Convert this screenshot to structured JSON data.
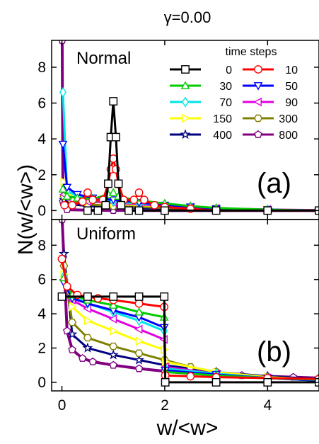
{
  "figure": {
    "title": "γ=0.00",
    "xlabel": "w/<w>",
    "ylabel": "N(w/<w>)",
    "legend_title": "time steps",
    "legend_placement": "top-right of panel (a)"
  },
  "series_style": [
    {
      "name": "0",
      "color": "#000000",
      "marker": "square"
    },
    {
      "name": "10",
      "color": "#ff0000",
      "marker": "circle"
    },
    {
      "name": "30",
      "color": "#00cc00",
      "marker": "triangle-up"
    },
    {
      "name": "50",
      "color": "#0000ff",
      "marker": "triangle-down"
    },
    {
      "name": "70",
      "color": "#00e5e5",
      "marker": "diamond"
    },
    {
      "name": "90",
      "color": "#e000e0",
      "marker": "triangle-left"
    },
    {
      "name": "150",
      "color": "#ffff00",
      "marker": "triangle-right"
    },
    {
      "name": "300",
      "color": "#808000",
      "marker": "hexagon"
    },
    {
      "name": "400",
      "color": "#000080",
      "marker": "star"
    },
    {
      "name": "800",
      "color": "#800080",
      "marker": "pentagon"
    }
  ],
  "chart_data": [
    {
      "type": "line",
      "panel_label": "(a)",
      "panel_name": "Normal",
      "xlim": [
        -0.2,
        5.0
      ],
      "ylim": [
        -0.5,
        9.5
      ],
      "xticks": [
        0,
        2,
        4
      ],
      "yticks": [
        0,
        2,
        4,
        6,
        8
      ],
      "grid": false,
      "series": [
        {
          "name": "0",
          "points": [
            [
              0.5,
              0
            ],
            [
              0.7,
              0
            ],
            [
              0.85,
              0.3
            ],
            [
              0.9,
              1.5
            ],
            [
              0.95,
              4.1
            ],
            [
              1.0,
              6.1
            ],
            [
              1.05,
              4.1
            ],
            [
              1.1,
              1.5
            ],
            [
              1.15,
              0.3
            ],
            [
              1.3,
              0
            ],
            [
              1.5,
              0
            ],
            [
              2.0,
              0
            ],
            [
              3.0,
              0
            ],
            [
              4.0,
              0
            ],
            [
              5.0,
              0
            ]
          ]
        },
        {
          "name": "10",
          "points": [
            [
              0.05,
              0.3
            ],
            [
              0.2,
              0.3
            ],
            [
              0.4,
              0.5
            ],
            [
              0.5,
              1.0
            ],
            [
              0.6,
              0.6
            ],
            [
              0.8,
              0.6
            ],
            [
              0.9,
              1.5
            ],
            [
              0.95,
              2.3
            ],
            [
              1.0,
              2.9
            ],
            [
              1.05,
              2.3
            ],
            [
              1.1,
              1.5
            ],
            [
              1.2,
              0.6
            ],
            [
              1.4,
              0.6
            ],
            [
              1.5,
              1.0
            ],
            [
              1.6,
              0.6
            ],
            [
              1.8,
              0.3
            ],
            [
              2.0,
              0.2
            ],
            [
              2.5,
              0.1
            ],
            [
              3.0,
              0
            ],
            [
              4.0,
              0
            ],
            [
              5.0,
              0
            ]
          ]
        },
        {
          "name": "30",
          "points": [
            [
              0.02,
              1.2
            ],
            [
              0.1,
              0.8
            ],
            [
              0.3,
              0.7
            ],
            [
              0.6,
              0.65
            ],
            [
              0.9,
              0.9
            ],
            [
              1.0,
              1.0
            ],
            [
              1.1,
              0.8
            ],
            [
              1.4,
              0.6
            ],
            [
              2.0,
              0.4
            ],
            [
              2.5,
              0.25
            ],
            [
              3.0,
              0.15
            ],
            [
              4.0,
              0.05
            ],
            [
              5.0,
              0
            ]
          ]
        },
        {
          "name": "50",
          "points": [
            [
              0.02,
              3.7
            ],
            [
              0.1,
              1.3
            ],
            [
              0.3,
              0.9
            ],
            [
              0.6,
              0.7
            ],
            [
              1.0,
              0.6
            ],
            [
              1.5,
              0.45
            ],
            [
              2.0,
              0.3
            ],
            [
              2.5,
              0.2
            ],
            [
              3.0,
              0.1
            ],
            [
              4.0,
              0.05
            ],
            [
              5.0,
              0
            ]
          ]
        },
        {
          "name": "70",
          "points": [
            [
              0.02,
              6.6
            ],
            [
              0.1,
              1.1
            ],
            [
              0.3,
              0.8
            ],
            [
              0.6,
              0.65
            ],
            [
              1.0,
              0.5
            ],
            [
              1.5,
              0.4
            ],
            [
              2.0,
              0.3
            ],
            [
              2.5,
              0.2
            ],
            [
              3.0,
              0.1
            ],
            [
              4.0,
              0.05
            ],
            [
              5.0,
              0
            ]
          ]
        },
        {
          "name": "90",
          "points": [
            [
              0.04,
              0.9
            ],
            [
              0.2,
              0.6
            ],
            [
              0.5,
              0.5
            ],
            [
              1.0,
              0.45
            ],
            [
              1.5,
              0.35
            ],
            [
              2.0,
              0.25
            ],
            [
              2.5,
              0.18
            ],
            [
              3.0,
              0.12
            ],
            [
              4.0,
              0.06
            ],
            [
              5.0,
              0.02
            ]
          ]
        },
        {
          "name": "150",
          "points": [
            [
              0.04,
              1.6
            ],
            [
              0.2,
              0.7
            ],
            [
              0.5,
              0.5
            ],
            [
              1.0,
              0.4
            ],
            [
              1.5,
              0.3
            ],
            [
              2.0,
              0.25
            ],
            [
              3.0,
              0.12
            ],
            [
              4.0,
              0.05
            ],
            [
              5.0,
              0.02
            ]
          ]
        },
        {
          "name": "300",
          "points": [
            [
              0.04,
              0.8
            ],
            [
              0.2,
              0.5
            ],
            [
              0.5,
              0.35
            ],
            [
              1.0,
              0.25
            ],
            [
              1.5,
              0.2
            ],
            [
              2.0,
              0.15
            ],
            [
              3.0,
              0.08
            ],
            [
              4.0,
              0.04
            ],
            [
              5.0,
              0.02
            ]
          ]
        },
        {
          "name": "400",
          "points": [
            [
              0.04,
              0.6
            ],
            [
              0.2,
              0.35
            ],
            [
              0.5,
              0.25
            ],
            [
              1.0,
              0.2
            ],
            [
              1.5,
              0.15
            ],
            [
              2.0,
              0.12
            ],
            [
              3.0,
              0.06
            ],
            [
              4.0,
              0.03
            ],
            [
              5.0,
              0.01
            ]
          ]
        },
        {
          "name": "800",
          "points": [
            [
              0.005,
              9.5
            ],
            [
              0.02,
              0.5
            ],
            [
              0.1,
              0.05
            ],
            [
              0.5,
              0.02
            ],
            [
              1.0,
              0.01
            ],
            [
              2.0,
              0
            ],
            [
              3.0,
              0
            ],
            [
              4.0,
              0
            ],
            [
              5.0,
              0
            ]
          ]
        }
      ]
    },
    {
      "type": "line",
      "panel_label": "(b)",
      "panel_name": "Uniform",
      "xlim": [
        -0.2,
        5.0
      ],
      "ylim": [
        -0.5,
        9.5
      ],
      "xticks": [
        0,
        2,
        4
      ],
      "yticks": [
        0,
        2,
        4,
        6,
        8
      ],
      "grid": false,
      "series": [
        {
          "name": "0",
          "points": [
            [
              0.0,
              5.0
            ],
            [
              0.5,
              5.0
            ],
            [
              1.0,
              5.0
            ],
            [
              1.5,
              5.0
            ],
            [
              1.99,
              5.0
            ],
            [
              2.01,
              0
            ],
            [
              3.0,
              0
            ],
            [
              4.0,
              0
            ],
            [
              5.0,
              0
            ]
          ]
        },
        {
          "name": "10",
          "points": [
            [
              0.0,
              7.2
            ],
            [
              0.1,
              5.6
            ],
            [
              0.3,
              5.1
            ],
            [
              0.7,
              4.9
            ],
            [
              1.0,
              4.8
            ],
            [
              1.5,
              4.6
            ],
            [
              1.99,
              4.4
            ],
            [
              2.01,
              0.4
            ],
            [
              2.5,
              0.35
            ],
            [
              3.0,
              0.3
            ],
            [
              4.0,
              0.25
            ],
            [
              5.0,
              0.2
            ]
          ]
        },
        {
          "name": "30",
          "points": [
            [
              0.04,
              6.1
            ],
            [
              0.2,
              5.1
            ],
            [
              0.5,
              4.8
            ],
            [
              1.0,
              4.5
            ],
            [
              1.5,
              4.1
            ],
            [
              1.99,
              3.8
            ],
            [
              2.01,
              0.6
            ],
            [
              3.0,
              0.4
            ],
            [
              4.0,
              0.25
            ],
            [
              5.0,
              0.15
            ]
          ]
        },
        {
          "name": "50",
          "points": [
            [
              0.04,
              5.8
            ],
            [
              0.2,
              4.9
            ],
            [
              0.5,
              4.6
            ],
            [
              1.0,
              4.2
            ],
            [
              1.5,
              3.8
            ],
            [
              1.99,
              3.2
            ],
            [
              2.01,
              0.7
            ],
            [
              3.0,
              0.45
            ],
            [
              4.0,
              0.25
            ],
            [
              5.0,
              0.1
            ]
          ]
        },
        {
          "name": "70",
          "points": [
            [
              0.04,
              6.2
            ],
            [
              0.2,
              5.0
            ],
            [
              0.5,
              4.6
            ],
            [
              1.0,
              4.1
            ],
            [
              1.5,
              3.6
            ],
            [
              1.99,
              3.0
            ],
            [
              2.01,
              0.8
            ],
            [
              3.0,
              0.5
            ],
            [
              4.0,
              0.25
            ],
            [
              5.0,
              0.1
            ]
          ]
        },
        {
          "name": "90",
          "points": [
            [
              0.04,
              6.0
            ],
            [
              0.2,
              4.8
            ],
            [
              0.5,
              4.3
            ],
            [
              1.0,
              3.7
            ],
            [
              1.5,
              3.1
            ],
            [
              1.99,
              2.5
            ],
            [
              2.01,
              0.9
            ],
            [
              3.0,
              0.5
            ],
            [
              4.0,
              0.25
            ],
            [
              5.0,
              0.1
            ]
          ]
        },
        {
          "name": "150",
          "points": [
            [
              0.04,
              6.3
            ],
            [
              0.2,
              4.4
            ],
            [
              0.5,
              3.6
            ],
            [
              1.0,
              3.0
            ],
            [
              1.5,
              2.4
            ],
            [
              1.99,
              1.9
            ],
            [
              2.01,
              1.2
            ],
            [
              3.0,
              0.6
            ],
            [
              4.0,
              0.3
            ],
            [
              5.0,
              0.15
            ]
          ]
        },
        {
          "name": "300",
          "points": [
            [
              0.04,
              6.8
            ],
            [
              0.2,
              3.5
            ],
            [
              0.5,
              2.6
            ],
            [
              1.0,
              2.1
            ],
            [
              1.5,
              1.7
            ],
            [
              2.0,
              1.3
            ],
            [
              2.5,
              0.9
            ],
            [
              3.0,
              0.6
            ],
            [
              4.0,
              0.3
            ],
            [
              5.0,
              0.15
            ]
          ]
        },
        {
          "name": "400",
          "points": [
            [
              0.04,
              7.5
            ],
            [
              0.2,
              2.8
            ],
            [
              0.5,
              2.0
            ],
            [
              1.0,
              1.6
            ],
            [
              1.5,
              1.3
            ],
            [
              2.0,
              1.0
            ],
            [
              2.5,
              0.8
            ],
            [
              3.0,
              0.6
            ],
            [
              4.0,
              0.35
            ],
            [
              5.0,
              0.2
            ]
          ]
        },
        {
          "name": "800",
          "points": [
            [
              0.005,
              9.5
            ],
            [
              0.1,
              3.0
            ],
            [
              0.2,
              1.9
            ],
            [
              0.4,
              1.4
            ],
            [
              0.6,
              1.2
            ],
            [
              1.0,
              1.0
            ],
            [
              1.5,
              0.8
            ],
            [
              2.0,
              0.65
            ],
            [
              2.5,
              0.55
            ],
            [
              3.0,
              0.45
            ],
            [
              3.5,
              0.4
            ],
            [
              4.0,
              0.35
            ],
            [
              4.5,
              0.3
            ],
            [
              5.0,
              0.25
            ]
          ]
        }
      ]
    }
  ]
}
